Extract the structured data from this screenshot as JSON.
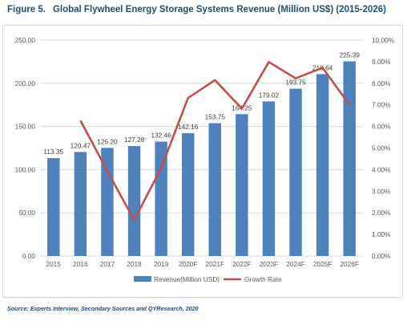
{
  "figure": {
    "number": "Figure 5.",
    "title": "Global Flywheel Energy Storage Systems Revenue (Million US$) (2015-2026)",
    "source": "Source: Experts Interview, Secondary Sources and QYResearch, 2020"
  },
  "colors": {
    "bar": "#4f81bd",
    "line": "#c0504d",
    "grid": "#d9d9d9",
    "axis_text": "#595959",
    "label_text": "#404040"
  },
  "chart_data": {
    "type": "bar",
    "categories": [
      "2015",
      "2016",
      "2017",
      "2018",
      "2019",
      "2020F",
      "2021F",
      "2022F",
      "2023F",
      "2024F",
      "2025F",
      "2026F"
    ],
    "series": [
      {
        "name": "Revenue(Million USD)",
        "type": "bar",
        "axis": "left",
        "values": [
          113.35,
          120.47,
          125.2,
          127.28,
          132.46,
          142.16,
          153.75,
          164.25,
          179.02,
          193.75,
          210.64,
          225.39
        ],
        "labels": [
          "113.35",
          "120.47",
          "125.20",
          "127.28",
          "132.46",
          "142.16",
          "153.75",
          "164.25",
          "179.02",
          "193.75",
          "210.64",
          "225.39"
        ]
      },
      {
        "name": "Growth Rate",
        "type": "line",
        "axis": "right",
        "values": [
          null,
          6.28,
          3.93,
          1.66,
          4.07,
          7.32,
          8.15,
          6.83,
          8.99,
          8.23,
          8.72,
          7.0
        ]
      }
    ],
    "y_left": {
      "min": 0,
      "max": 250,
      "ticks": [
        "0.00",
        "50.00",
        "100.00",
        "150.00",
        "200.00",
        "250.00"
      ]
    },
    "y_right": {
      "min": 0,
      "max": 10,
      "ticks": [
        "0.00%",
        "1.00%",
        "2.00%",
        "3.00%",
        "4.00%",
        "5.00%",
        "6.00%",
        "7.00%",
        "8.00%",
        "9.00%",
        "10.00%"
      ]
    },
    "grid": true,
    "legend": "bottom"
  }
}
